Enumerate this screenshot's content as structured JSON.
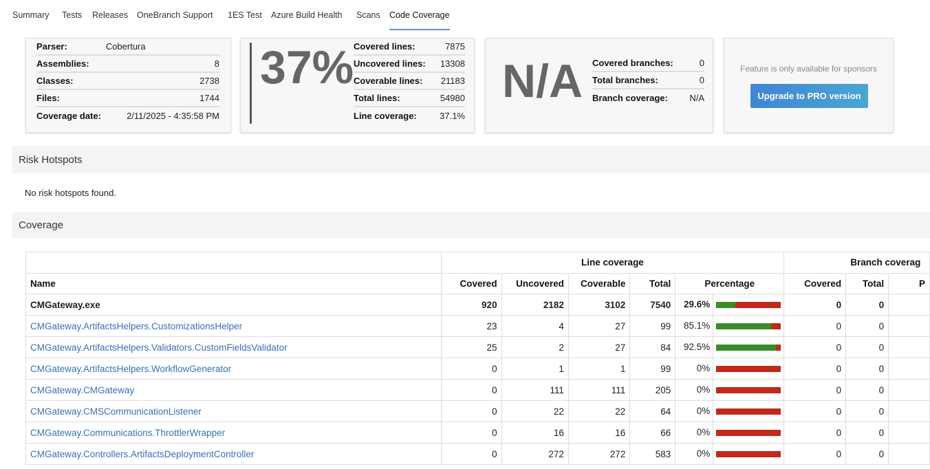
{
  "tabs": [
    "Summary",
    "Tests",
    "Releases",
    "OneBranch Support",
    "1ES Test",
    "Azure Build Health",
    "Scans",
    "Code Coverage"
  ],
  "active_tab": "Code Coverage",
  "info": [
    [
      "Parser:",
      "Cobertura"
    ],
    [
      "Assemblies:",
      "8"
    ],
    [
      "Classes:",
      "2738"
    ],
    [
      "Files:",
      "1744"
    ],
    [
      "Coverage date:",
      "2/11/2025 - 4:35:58 PM"
    ]
  ],
  "line": {
    "big": "37%",
    "rows": [
      [
        "Covered lines:",
        "7875"
      ],
      [
        "Uncovered lines:",
        "13308"
      ],
      [
        "Coverable lines:",
        "21183"
      ],
      [
        "Total lines:",
        "54980"
      ],
      [
        "Line coverage:",
        "37.1%"
      ]
    ]
  },
  "branch": {
    "big": "N/A",
    "rows": [
      [
        "Covered branches:",
        "0"
      ],
      [
        "Total branches:",
        "0"
      ],
      [
        "Branch coverage:",
        "N/A"
      ]
    ]
  },
  "sponsor": {
    "text": "Feature is only available for sponsors",
    "button": "Upgrade to PRO version"
  },
  "risk": {
    "title": "Risk Hotspots",
    "empty": "No risk hotspots found."
  },
  "coverage": {
    "title": "Coverage",
    "group_line": "Line coverage",
    "group_branch": "Branch coverag",
    "headers": [
      "Name",
      "Covered",
      "Uncovered",
      "Coverable",
      "Total",
      "Percentage",
      "Covered",
      "Total",
      "P"
    ],
    "colors": {
      "covered": "#3c8b2a",
      "uncovered": "#c0291c"
    },
    "rows": [
      {
        "name": "CMGateway.exe",
        "bold": true,
        "covered": "920",
        "uncovered": "2182",
        "coverable": "3102",
        "total": "7540",
        "pct": "29.6%",
        "fill": 29.6,
        "bcovered": "0",
        "btotal": "0"
      },
      {
        "name": "CMGateway.ArtifactsHelpers.CustomizationsHelper",
        "covered": "23",
        "uncovered": "4",
        "coverable": "27",
        "total": "99",
        "pct": "85.1%",
        "fill": 85.1,
        "bcovered": "0",
        "btotal": "0"
      },
      {
        "name": "CMGateway.ArtifactsHelpers.Validators.CustomFieldsValidator",
        "covered": "25",
        "uncovered": "2",
        "coverable": "27",
        "total": "84",
        "pct": "92.5%",
        "fill": 92.5,
        "bcovered": "0",
        "btotal": "0"
      },
      {
        "name": "CMGateway.ArtifactsHelpers.WorkflowGenerator",
        "covered": "0",
        "uncovered": "1",
        "coverable": "1",
        "total": "99",
        "pct": "0%",
        "fill": 0,
        "bcovered": "0",
        "btotal": "0"
      },
      {
        "name": "CMGateway.CMGateway",
        "covered": "0",
        "uncovered": "111",
        "coverable": "111",
        "total": "205",
        "pct": "0%",
        "fill": 0,
        "bcovered": "0",
        "btotal": "0"
      },
      {
        "name": "CMGateway.CMSCommunicationListener",
        "covered": "0",
        "uncovered": "22",
        "coverable": "22",
        "total": "64",
        "pct": "0%",
        "fill": 0,
        "bcovered": "0",
        "btotal": "0"
      },
      {
        "name": "CMGateway.Communications.ThrottlerWrapper",
        "covered": "0",
        "uncovered": "16",
        "coverable": "16",
        "total": "66",
        "pct": "0%",
        "fill": 0,
        "bcovered": "0",
        "btotal": "0"
      },
      {
        "name": "CMGateway.Controllers.ArtifactsDeploymentController",
        "covered": "0",
        "uncovered": "272",
        "coverable": "272",
        "total": "583",
        "pct": "0%",
        "fill": 0,
        "bcovered": "0",
        "btotal": "0"
      }
    ]
  }
}
